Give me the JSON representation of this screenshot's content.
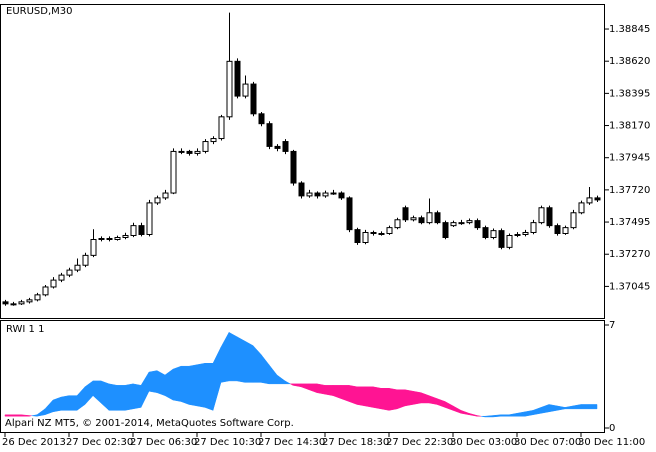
{
  "chart_data": [
    {
      "type": "candlestick",
      "title": "EURUSD,M30",
      "categories": [
        "26 Dec 2013",
        null,
        null,
        null,
        null,
        null,
        null,
        null,
        "27 Dec 02:30",
        null,
        null,
        null,
        null,
        null,
        null,
        null,
        "27 Dec 06:30",
        null,
        null,
        null,
        null,
        null,
        null,
        null,
        "27 Dec 10:30",
        null,
        null,
        null,
        null,
        null,
        null,
        null,
        "27 Dec 14:30",
        null,
        null,
        null,
        null,
        null,
        null,
        null,
        "27 Dec 18:30",
        null,
        null,
        null,
        null,
        null,
        null,
        null,
        "27 Dec 22:30",
        null,
        null,
        null,
        null,
        null,
        null,
        null,
        "30 Dec 03:00",
        null,
        null,
        null,
        null,
        null,
        null,
        null,
        "30 Dec 07:00",
        null,
        null,
        null,
        null,
        null,
        null,
        null,
        "30 Dec 11:00",
        null,
        null
      ],
      "open": [
        1.36937,
        1.36923,
        1.36923,
        1.36937,
        1.36951,
        1.36986,
        1.37041,
        1.37089,
        1.37124,
        1.37159,
        1.37193,
        1.37262,
        1.37373,
        1.3738,
        1.37373,
        1.37387,
        1.37401,
        1.3747,
        1.37408,
        1.37629,
        1.37664,
        1.37698,
        1.37989,
        1.37989,
        1.37975,
        1.37989,
        1.38058,
        1.38079,
        1.38231,
        1.38619,
        1.38376,
        1.3846,
        1.38252,
        1.38183,
        1.38024,
        1.38058,
        1.37989,
        1.37768,
        1.37678,
        1.37698,
        1.37678,
        1.37698,
        1.37698,
        1.37664,
        1.37442,
        1.37352,
        1.37422,
        1.37415,
        1.37415,
        1.37456,
        1.37595,
        1.37511,
        1.37525,
        1.37491,
        1.3756,
        1.37491,
        1.3747,
        1.37491,
        1.37491,
        1.37505,
        1.37456,
        1.37387,
        1.37435,
        1.37318,
        1.37401,
        1.37408,
        1.37422,
        1.37491,
        1.37595,
        1.3747,
        1.37415,
        1.37456,
        1.3756,
        1.37629,
        1.37664
      ],
      "high": [
        1.36951,
        1.36937,
        1.36951,
        1.36965,
        1.37,
        1.37055,
        1.3711,
        1.3714,
        1.37175,
        1.3724,
        1.3728,
        1.37445,
        1.37395,
        1.37395,
        1.374,
        1.3742,
        1.3749,
        1.3749,
        1.3765,
        1.3768,
        1.3772,
        1.3801,
        1.3801,
        1.38,
        1.3801,
        1.38075,
        1.38095,
        1.38245,
        1.3896,
        1.3864,
        1.3852,
        1.38475,
        1.38265,
        1.382,
        1.3804,
        1.38075,
        1.38,
        1.3778,
        1.3772,
        1.3771,
        1.37715,
        1.3772,
        1.3771,
        1.37675,
        1.37455,
        1.3744,
        1.37435,
        1.3743,
        1.3747,
        1.37525,
        1.3761,
        1.3754,
        1.3754,
        1.3766,
        1.37575,
        1.37505,
        1.37505,
        1.3751,
        1.3752,
        1.3752,
        1.3747,
        1.3745,
        1.3745,
        1.37415,
        1.37425,
        1.3744,
        1.3751,
        1.3761,
        1.3761,
        1.37485,
        1.3747,
        1.3758,
        1.37645,
        1.3774,
        1.3768
      ],
      "low": [
        1.3691,
        1.3691,
        1.36915,
        1.36925,
        1.3694,
        1.36975,
        1.3703,
        1.37075,
        1.3711,
        1.37145,
        1.3718,
        1.3725,
        1.3736,
        1.3736,
        1.37365,
        1.37375,
        1.3739,
        1.37395,
        1.37395,
        1.37615,
        1.3765,
        1.3769,
        1.3797,
        1.3796,
        1.3796,
        1.37975,
        1.3804,
        1.38065,
        1.3821,
        1.3836,
        1.3836,
        1.38235,
        1.38165,
        1.38005,
        1.3799,
        1.3797,
        1.3775,
        1.3766,
        1.37665,
        1.3766,
        1.37665,
        1.37685,
        1.3765,
        1.37425,
        1.37335,
        1.3734,
        1.374,
        1.374,
        1.37405,
        1.37445,
        1.37495,
        1.375,
        1.3748,
        1.3748,
        1.3748,
        1.37375,
        1.3746,
        1.37475,
        1.3748,
        1.3744,
        1.37375,
        1.37375,
        1.37305,
        1.37305,
        1.3739,
        1.37395,
        1.3741,
        1.3748,
        1.37455,
        1.374,
        1.37405,
        1.37445,
        1.3755,
        1.37615,
        1.37635
      ],
      "close": [
        1.36923,
        1.36923,
        1.36937,
        1.36951,
        1.36986,
        1.37041,
        1.37089,
        1.37124,
        1.37159,
        1.37193,
        1.37262,
        1.37373,
        1.3738,
        1.37373,
        1.37387,
        1.37401,
        1.3747,
        1.37408,
        1.37629,
        1.37664,
        1.37698,
        1.37989,
        1.37989,
        1.37975,
        1.37989,
        1.38058,
        1.38079,
        1.38231,
        1.38619,
        1.38376,
        1.3846,
        1.38252,
        1.38183,
        1.38024,
        1.3801,
        1.37989,
        1.37768,
        1.37678,
        1.37698,
        1.37678,
        1.37698,
        1.37698,
        1.37664,
        1.37442,
        1.37352,
        1.37422,
        1.37415,
        1.37415,
        1.37456,
        1.37511,
        1.37511,
        1.37525,
        1.37491,
        1.3756,
        1.37491,
        1.37387,
        1.37491,
        1.37491,
        1.37505,
        1.37456,
        1.37387,
        1.37435,
        1.37318,
        1.37401,
        1.37408,
        1.37422,
        1.37491,
        1.37595,
        1.3747,
        1.37415,
        1.37456,
        1.3756,
        1.37629,
        1.37664,
        1.3765
      ],
      "up_color": "#ffffff",
      "down_color": "#000000",
      "ylim": [
        1.36824,
        1.3902
      ],
      "yticks": [
        1.38845,
        {
          "value": 1.3862,
          "label": "1.38620"
        },
        1.38395,
        {
          "value": 1.3817,
          "label": "1.38170"
        },
        1.37945,
        {
          "value": 1.3772,
          "label": "1.37720"
        },
        1.37495,
        {
          "value": 1.3727,
          "label": "1.37270"
        },
        1.37045
      ]
    },
    {
      "type": "area-between",
      "title": "RWI 1 1",
      "series": [
        {
          "color": "#1e90ff",
          "values": [
            0.8,
            0.8,
            0.8,
            0.8,
            0.9,
            1.3,
            1.9,
            2.1,
            2.2,
            2.2,
            2.8,
            3.2,
            3.2,
            3.0,
            2.9,
            2.9,
            3.0,
            2.9,
            3.8,
            3.9,
            3.6,
            4.0,
            4.2,
            4.2,
            4.3,
            4.4,
            4.4,
            5.5,
            6.5,
            6.2,
            5.9,
            5.6,
            5.0,
            4.3,
            3.6,
            3.2,
            2.9,
            2.8,
            2.6,
            2.4,
            2.3,
            2.2,
            2.0,
            1.8,
            1.6,
            1.5,
            1.4,
            1.3,
            1.2,
            1.3,
            1.5,
            1.6,
            1.7,
            1.7,
            1.6,
            1.4,
            1.2,
            1.0,
            0.9,
            0.8,
            0.8,
            0.85,
            0.9,
            0.9,
            1.0,
            1.1,
            1.2,
            1.4,
            1.6,
            1.5,
            1.4,
            1.5,
            1.6,
            1.6,
            1.6
          ]
        },
        {
          "color": "#ff1493",
          "values": [
            0.9,
            0.9,
            0.9,
            0.85,
            0.8,
            0.9,
            1.1,
            1.2,
            1.2,
            1.2,
            1.6,
            2.2,
            1.7,
            1.2,
            1.2,
            1.2,
            1.3,
            1.4,
            2.5,
            2.4,
            2.2,
            1.9,
            1.8,
            1.6,
            1.5,
            1.4,
            1.2,
            3.1,
            3.2,
            3.2,
            3.1,
            3.1,
            3.1,
            3.0,
            3.0,
            3.0,
            3.0,
            3.0,
            3.0,
            3.0,
            2.9,
            2.9,
            2.9,
            2.9,
            2.8,
            2.8,
            2.8,
            2.7,
            2.7,
            2.6,
            2.6,
            2.5,
            2.4,
            2.2,
            2.0,
            1.8,
            1.5,
            1.2,
            1.0,
            0.85,
            0.75,
            0.75,
            0.8,
            0.8,
            0.8,
            0.8,
            0.9,
            1.0,
            1.1,
            1.2,
            1.3,
            1.3,
            1.3,
            1.3,
            1.3
          ]
        }
      ],
      "ylim": [
        0,
        7
      ],
      "yticks": [
        0,
        7
      ]
    }
  ],
  "copyright": "Alpari NZ MT5, © 2001-2014, MetaQuotes Software Corp."
}
